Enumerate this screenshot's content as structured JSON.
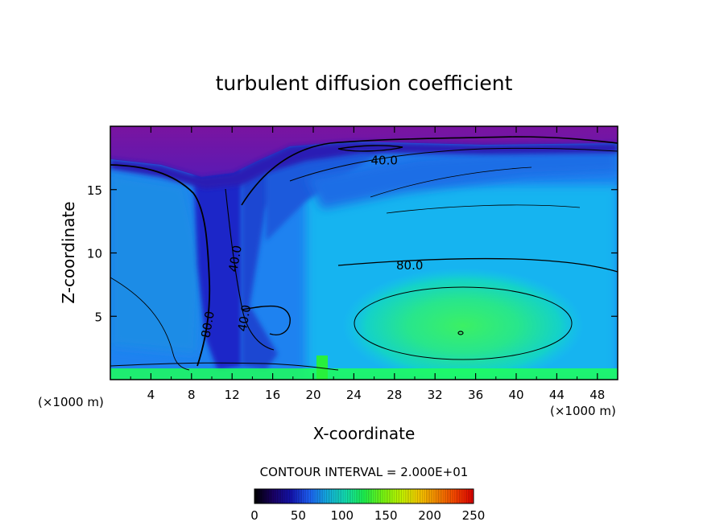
{
  "chart_data": {
    "type": "heatmap",
    "title": "turbulent diffusion coefficient",
    "xlabel": "X-coordinate",
    "ylabel": "Z-coordinate",
    "x_unit": "(×1000 m)",
    "x_unit_right": "(×1000 m)",
    "xlim": [
      0,
      50
    ],
    "ylim": [
      0,
      20
    ],
    "x_ticks": [
      "4",
      "8",
      "12",
      "16",
      "20",
      "24",
      "28",
      "32",
      "36",
      "40",
      "44",
      "48"
    ],
    "y_ticks": [
      "5",
      "10",
      "15"
    ],
    "contour_interval_text": "CONTOUR INTERVAL = 2.000E+01",
    "contour_labels": [
      {
        "text": "40.0",
        "x": 27,
        "z": 17.0
      },
      {
        "text": "80.0",
        "x": 29.5,
        "z": 8.7
      },
      {
        "text": "40.0",
        "x": 12.7,
        "z": 9.5
      },
      {
        "text": "40.0",
        "x": 13.6,
        "z": 4.8
      },
      {
        "text": "80.0",
        "x": 10.0,
        "z": 4.3
      }
    ],
    "colorbar": {
      "min": 0,
      "max": 250,
      "tick_labels": [
        "0",
        "50",
        "100",
        "150",
        "200",
        "250"
      ],
      "colors": [
        "#000000",
        "#1a0066",
        "#1414b4",
        "#1e64ff",
        "#14b4e6",
        "#14e6b4",
        "#1efa50",
        "#78ff14",
        "#c8ff00",
        "#ffd200",
        "#ff8c00",
        "#ff4600",
        "#e60000"
      ]
    },
    "colors": {
      "top_purple": "#7a14a0",
      "deep_blue": "#1414b4",
      "mid_blue": "#1e64e6",
      "light_blue": "#14a0f0",
      "cyan": "#14d2e6",
      "green": "#1eff5a"
    },
    "grid": false,
    "legend": "none"
  }
}
